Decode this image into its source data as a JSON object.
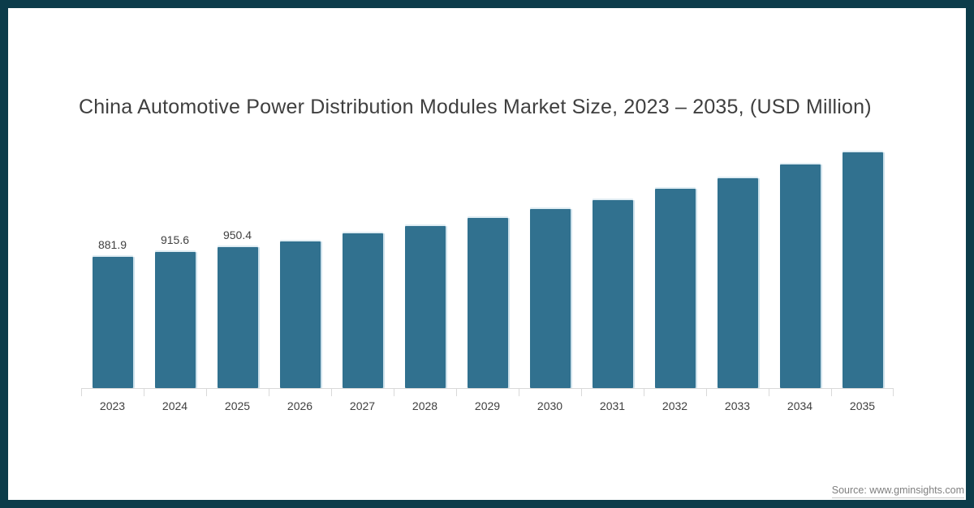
{
  "frame": {
    "border_color": "#0c3c4a",
    "background": "#ffffff"
  },
  "title": {
    "text": "China Automotive Power Distribution Modules Market Size, 2023 – 2035, (USD Million)",
    "color": "#3f3f3f"
  },
  "source": {
    "text": "Source: www.gminsights.com",
    "color": "#7f7f7f"
  },
  "chart_data": {
    "type": "bar",
    "title": "China Automotive Power Distribution Modules Market Size, 2023 – 2035, (USD Million)",
    "unit": "USD Million",
    "categories": [
      "2023",
      "2024",
      "2025",
      "2026",
      "2027",
      "2028",
      "2029",
      "2030",
      "2031",
      "2032",
      "2033",
      "2034",
      "2035"
    ],
    "values": [
      881.9,
      915.6,
      950.4,
      986.9,
      1042.1,
      1091.4,
      1144.0,
      1203.8,
      1264.0,
      1340.2,
      1413.6,
      1503.7,
      1588.0
    ],
    "data_labels": [
      "881.9",
      "915.6",
      "950.4",
      "",
      "",
      "",
      "",
      "",
      "",
      "",
      "",
      "",
      ""
    ],
    "xlabel": "",
    "ylabel": "",
    "ylim": [
      0,
      1700
    ],
    "grid": false,
    "legend": false,
    "y_axis_shown": false,
    "bar_color": "#31718f",
    "axis_color": "#d9d9d9",
    "label_color": "#404040"
  }
}
